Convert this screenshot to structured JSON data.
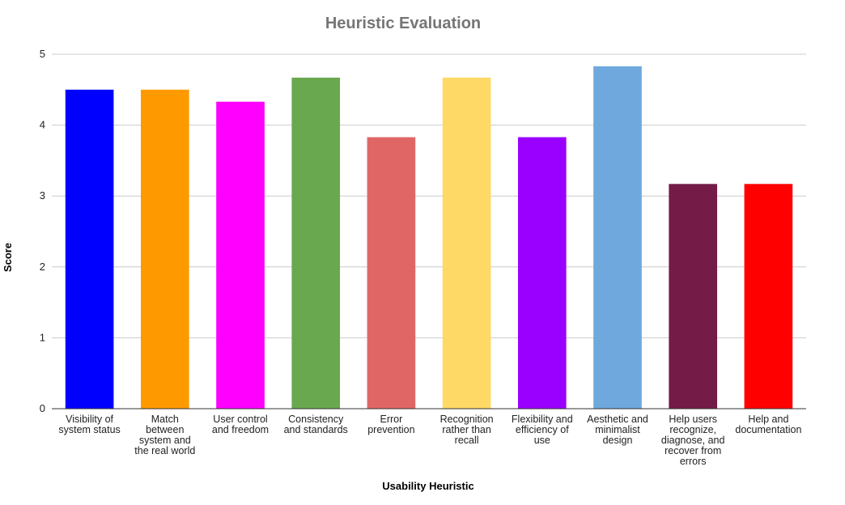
{
  "chart_data": {
    "type": "bar",
    "title": "Heuristic Evaluation",
    "xlabel": "Usability Heuristic",
    "ylabel": "Score",
    "ylim": [
      0,
      5
    ],
    "yticks": [
      "0",
      "1",
      "2",
      "3",
      "4",
      "5"
    ],
    "grid": true,
    "legend": "none",
    "categories": [
      [
        "Visibility of",
        "system status"
      ],
      [
        "Match",
        "between",
        "system and",
        "the real world"
      ],
      [
        "User control",
        "and freedom"
      ],
      [
        "Consistency",
        "and standards"
      ],
      [
        "Error",
        "prevention"
      ],
      [
        "Recognition",
        "rather than",
        "recall"
      ],
      [
        "Flexibility and",
        "efficiency of",
        "use"
      ],
      [
        "Aesthetic and",
        "minimalist",
        "design"
      ],
      [
        "Help users",
        "recognize,",
        "diagnose, and",
        "recover from",
        "errors"
      ],
      [
        "Help and",
        "documentation"
      ]
    ],
    "values": [
      4.5,
      4.5,
      4.33,
      4.67,
      3.83,
      4.67,
      3.83,
      4.83,
      3.17,
      3.17
    ],
    "colors": [
      "#0000ff",
      "#ff9900",
      "#ff00ff",
      "#6aa84f",
      "#e06666",
      "#ffd966",
      "#9900ff",
      "#6fa8dc",
      "#741b47",
      "#ff0000"
    ]
  }
}
